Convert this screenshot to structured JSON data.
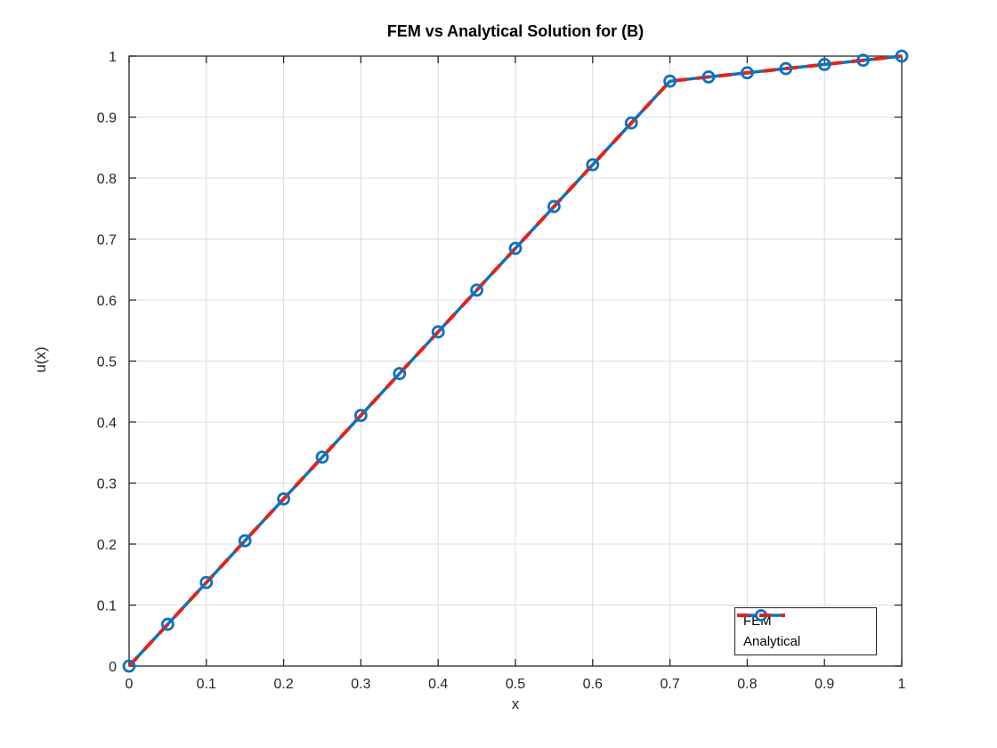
{
  "chart_data": {
    "type": "line",
    "title": "FEM vs Analytical Solution for (B)",
    "xlabel": "x",
    "ylabel": "u(x)",
    "xlim": [
      0,
      1
    ],
    "ylim": [
      0,
      1
    ],
    "xticks": [
      0,
      0.1,
      0.2,
      0.3,
      0.4,
      0.5,
      0.6,
      0.7,
      0.8,
      0.9,
      1
    ],
    "xtick_labels": [
      "0",
      "0.1",
      "0.2",
      "0.3",
      "0.4",
      "0.5",
      "0.6",
      "0.7",
      "0.8",
      "0.9",
      "1"
    ],
    "yticks": [
      0,
      0.1,
      0.2,
      0.3,
      0.4,
      0.5,
      0.6,
      0.7,
      0.8,
      0.9,
      1
    ],
    "ytick_labels": [
      "0",
      "0.1",
      "0.2",
      "0.3",
      "0.4",
      "0.5",
      "0.6",
      "0.7",
      "0.8",
      "0.9",
      "1"
    ],
    "grid": true,
    "grid_color": "#dcdcdc",
    "axis_color": "#262626",
    "legend_position": "bottom-right",
    "x": [
      0,
      0.05,
      0.1,
      0.15,
      0.2,
      0.25,
      0.3,
      0.35,
      0.4,
      0.45,
      0.5,
      0.55,
      0.6,
      0.65,
      0.7,
      0.75,
      0.8,
      0.85,
      0.9,
      0.95,
      1
    ],
    "series": [
      {
        "name": "FEM",
        "color": "#0f72bd",
        "style": "solid",
        "marker": "circle",
        "values": [
          0,
          0.0685,
          0.137,
          0.2055,
          0.274,
          0.3425,
          0.411,
          0.4795,
          0.5479,
          0.6164,
          0.6849,
          0.7534,
          0.8219,
          0.8904,
          0.9589,
          0.9658,
          0.9726,
          0.9795,
          0.9863,
          0.9932,
          1
        ]
      },
      {
        "name": "Analytical",
        "color": "#e2231a",
        "style": "dashed",
        "marker": "none",
        "values": [
          0,
          0.0685,
          0.137,
          0.2055,
          0.274,
          0.3425,
          0.411,
          0.4795,
          0.5479,
          0.6164,
          0.6849,
          0.7534,
          0.8219,
          0.8904,
          0.9589,
          0.9658,
          0.9726,
          0.9795,
          0.9863,
          0.9932,
          1
        ]
      }
    ]
  }
}
